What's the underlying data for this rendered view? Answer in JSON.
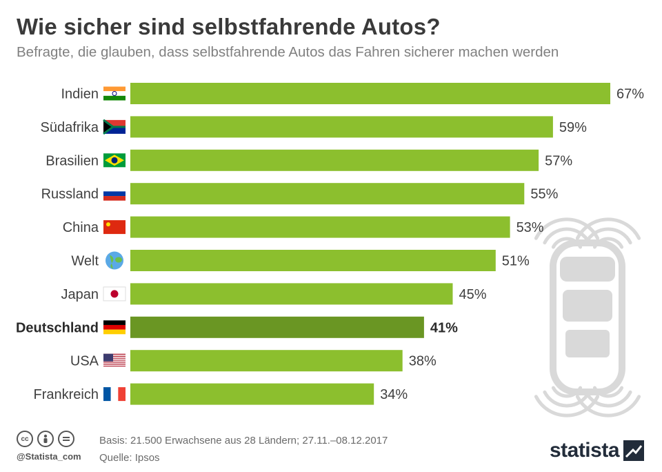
{
  "title": "Wie sicher sind selbstfahrende Autos?",
  "subtitle": "Befragte, die glauben, dass selbstfahrende Autos das Fahren sicherer machen werden",
  "chart_data": {
    "type": "bar",
    "orientation": "horizontal",
    "categories": [
      "Indien",
      "Südafrika",
      "Brasilien",
      "Russland",
      "China",
      "Welt",
      "Japan",
      "Deutschland",
      "USA",
      "Frankreich"
    ],
    "values": [
      67,
      59,
      57,
      55,
      53,
      51,
      45,
      41,
      38,
      34
    ],
    "value_labels": [
      "67%",
      "59%",
      "57%",
      "55%",
      "53%",
      "51%",
      "45%",
      "41%",
      "38%",
      "34%"
    ],
    "flags": [
      "flag-india-icon",
      "flag-south-africa-icon",
      "flag-brazil-icon",
      "flag-russia-icon",
      "flag-china-icon",
      "globe-icon",
      "flag-japan-icon",
      "flag-germany-icon",
      "flag-usa-icon",
      "flag-france-icon"
    ],
    "highlight": "Deutschland",
    "unit": "%",
    "xlim": [
      0,
      67
    ],
    "grid": false,
    "colors": {
      "bar": "#8cbf2e",
      "highlight": "#6a9623"
    }
  },
  "footer": {
    "handle": "@Statista_com",
    "basis": "Basis: 21.500 Erwachsene aus 28 Ländern; 27.11.–08.12.2017",
    "source": "Quelle: Ipsos",
    "logo_text": "statista",
    "cc_icons": [
      "cc-icon",
      "by-icon",
      "nd-icon"
    ]
  }
}
